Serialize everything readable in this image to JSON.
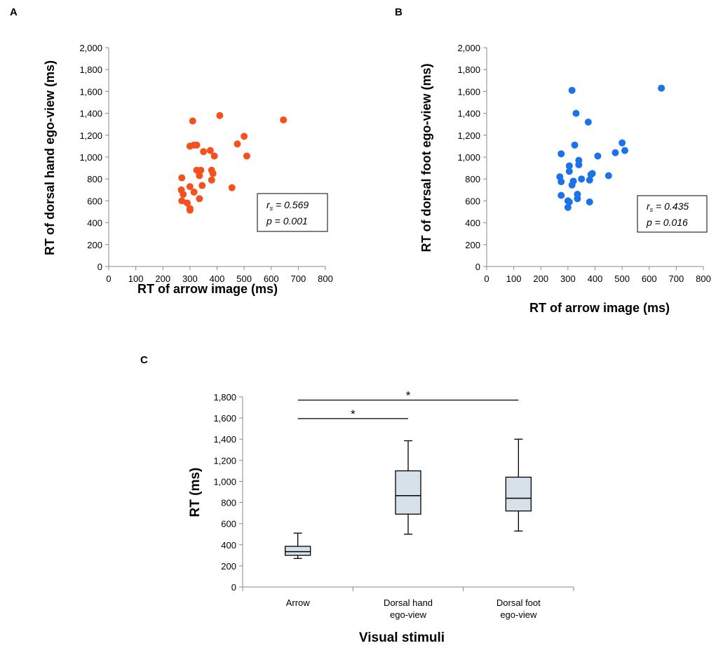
{
  "chart_data": [
    {
      "panel": "A",
      "type": "scatter",
      "xlabel": "RT of arrow image (ms)",
      "ylabel": "RT of dorsal hand ego-view (ms)",
      "xlim": [
        0,
        800
      ],
      "ylim": [
        0,
        2000
      ],
      "xticks": [
        0,
        100,
        200,
        300,
        400,
        500,
        600,
        700,
        800
      ],
      "yticks": [
        0,
        200,
        400,
        600,
        800,
        1000,
        1200,
        1400,
        1600,
        1800,
        2000
      ],
      "ytick_labels": [
        "0",
        "200",
        "400",
        "600",
        "800",
        "1,000",
        "1,200",
        "1,400",
        "1,600",
        "1,800",
        "2,000"
      ],
      "point_color": "#f4511e",
      "stat_lines": [
        "r_s = 0.569",
        "p = 0.001"
      ],
      "points": [
        [
          270,
          810
        ],
        [
          268,
          700
        ],
        [
          275,
          660
        ],
        [
          270,
          600
        ],
        [
          290,
          580
        ],
        [
          300,
          530
        ],
        [
          300,
          515
        ],
        [
          300,
          730
        ],
        [
          310,
          1330
        ],
        [
          300,
          1100
        ],
        [
          315,
          1110
        ],
        [
          325,
          1110
        ],
        [
          325,
          880
        ],
        [
          315,
          680
        ],
        [
          335,
          830
        ],
        [
          335,
          620
        ],
        [
          340,
          880
        ],
        [
          345,
          740
        ],
        [
          350,
          1050
        ],
        [
          375,
          1060
        ],
        [
          380,
          880
        ],
        [
          385,
          850
        ],
        [
          380,
          790
        ],
        [
          390,
          1010
        ],
        [
          410,
          1380
        ],
        [
          455,
          720
        ],
        [
          475,
          1120
        ],
        [
          500,
          1190
        ],
        [
          510,
          1010
        ],
        [
          645,
          1340
        ]
      ]
    },
    {
      "panel": "B",
      "type": "scatter",
      "xlabel": "RT of arrow image (ms)",
      "ylabel": "RT of dorsal foot ego-view (ms)",
      "xlim": [
        0,
        800
      ],
      "ylim": [
        0,
        2000
      ],
      "xticks": [
        0,
        100,
        200,
        300,
        400,
        500,
        600,
        700,
        800
      ],
      "yticks": [
        0,
        200,
        400,
        600,
        800,
        1000,
        1200,
        1400,
        1600,
        1800,
        2000
      ],
      "ytick_labels": [
        "0",
        "200",
        "400",
        "600",
        "800",
        "1,000",
        "1,200",
        "1,400",
        "1,600",
        "1,800",
        "2,000"
      ],
      "point_color": "#1a73e8",
      "stat_lines": [
        "r_s = 0.435",
        "p = 0.016"
      ],
      "points": [
        [
          270,
          820
        ],
        [
          275,
          775
        ],
        [
          275,
          1030
        ],
        [
          275,
          650
        ],
        [
          300,
          600
        ],
        [
          300,
          540
        ],
        [
          305,
          590
        ],
        [
          305,
          870
        ],
        [
          305,
          920
        ],
        [
          315,
          745
        ],
        [
          320,
          780
        ],
        [
          315,
          1610
        ],
        [
          325,
          1110
        ],
        [
          330,
          1400
        ],
        [
          335,
          620
        ],
        [
          335,
          660
        ],
        [
          340,
          930
        ],
        [
          340,
          970
        ],
        [
          350,
          800
        ],
        [
          375,
          1320
        ],
        [
          380,
          590
        ],
        [
          380,
          790
        ],
        [
          385,
          840
        ],
        [
          390,
          850
        ],
        [
          410,
          1010
        ],
        [
          450,
          830
        ],
        [
          475,
          1040
        ],
        [
          500,
          1130
        ],
        [
          510,
          1060
        ],
        [
          645,
          1630
        ]
      ]
    },
    {
      "panel": "C",
      "type": "box",
      "xlabel": "Visual stimuli",
      "ylabel": "RT (ms)",
      "ylim": [
        0,
        1800
      ],
      "yticks": [
        0,
        200,
        400,
        600,
        800,
        1000,
        1200,
        1400,
        1600,
        1800
      ],
      "ytick_labels": [
        "0",
        "200",
        "400",
        "600",
        "800",
        "1,000",
        "1,200",
        "1,400",
        "1,600",
        "1,800"
      ],
      "box_color": "#d6e1ea",
      "categories": [
        [
          "Arrow"
        ],
        [
          "Dorsal hand",
          "ego-view"
        ],
        [
          "Dorsal foot",
          "ego-view"
        ]
      ],
      "boxes": [
        {
          "min": 270,
          "q1": 300,
          "median": 335,
          "q3": 385,
          "max": 510
        },
        {
          "min": 500,
          "q1": 690,
          "median": 865,
          "q3": 1100,
          "max": 1385
        },
        {
          "min": 530,
          "q1": 720,
          "median": 840,
          "q3": 1040,
          "max": 1400
        }
      ],
      "significance": [
        {
          "from": 0,
          "to": 2,
          "level": 1770,
          "label": "*"
        },
        {
          "from": 0,
          "to": 1,
          "level": 1595,
          "label": "*"
        }
      ]
    }
  ]
}
